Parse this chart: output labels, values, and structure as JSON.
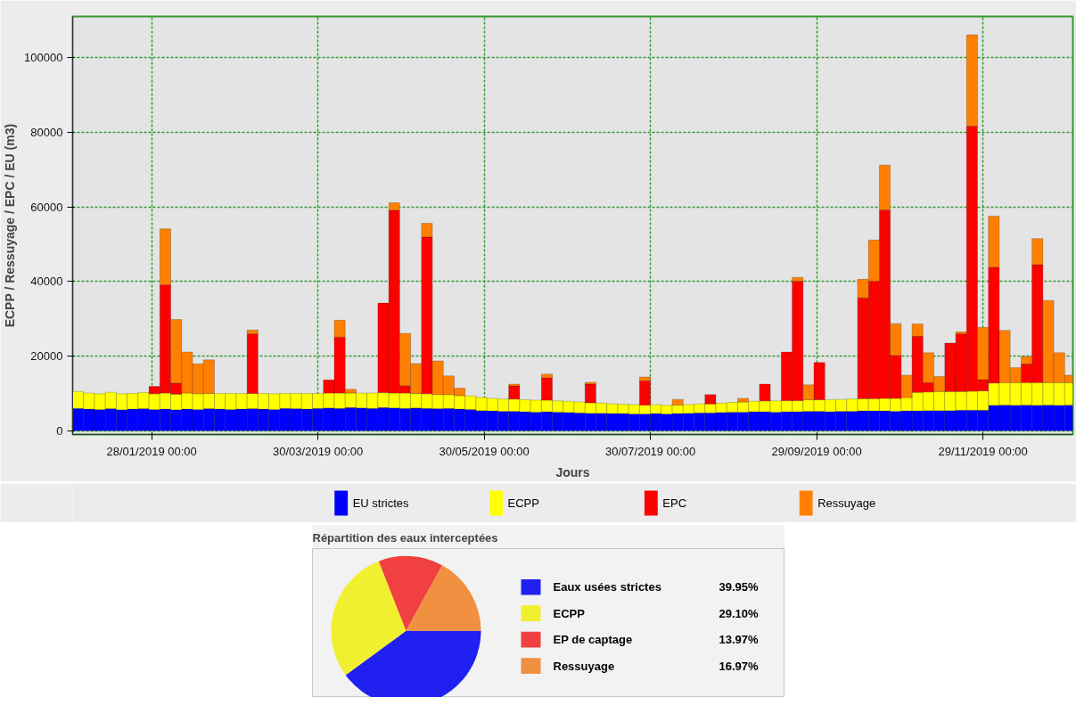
{
  "chart_data": [
    {
      "type": "bar",
      "stacked": true,
      "xlabel": "Jours",
      "ylabel": "ECPP / Ressuyage / EPC / EU (m3)",
      "x": [
        "2019-01-01",
        "2019-01-05",
        "2019-01-09",
        "2019-01-13",
        "2019-01-17",
        "2019-01-21",
        "2019-01-25",
        "2019-01-29",
        "2019-02-02",
        "2019-02-06",
        "2019-02-10",
        "2019-02-14",
        "2019-02-18",
        "2019-02-22",
        "2019-02-26",
        "2019-03-02",
        "2019-03-06",
        "2019-03-10",
        "2019-03-14",
        "2019-03-18",
        "2019-03-22",
        "2019-03-26",
        "2019-03-30",
        "2019-04-03",
        "2019-04-07",
        "2019-04-11",
        "2019-04-15",
        "2019-04-19",
        "2019-04-23",
        "2019-04-27",
        "2019-05-01",
        "2019-05-05",
        "2019-05-09",
        "2019-05-13",
        "2019-05-17",
        "2019-05-21",
        "2019-05-25",
        "2019-05-29",
        "2019-06-02",
        "2019-06-06",
        "2019-06-10",
        "2019-06-14",
        "2019-06-18",
        "2019-06-22",
        "2019-06-26",
        "2019-06-30",
        "2019-07-04",
        "2019-07-08",
        "2019-07-12",
        "2019-07-16",
        "2019-07-20",
        "2019-07-24",
        "2019-07-28",
        "2019-08-01",
        "2019-08-05",
        "2019-08-09",
        "2019-08-13",
        "2019-08-17",
        "2019-08-21",
        "2019-08-25",
        "2019-08-29",
        "2019-09-02",
        "2019-09-06",
        "2019-09-10",
        "2019-09-14",
        "2019-09-18",
        "2019-09-22",
        "2019-09-26",
        "2019-09-30",
        "2019-10-04",
        "2019-10-08",
        "2019-10-12",
        "2019-10-16",
        "2019-10-20",
        "2019-10-24",
        "2019-10-28",
        "2019-11-01",
        "2019-11-05",
        "2019-11-09",
        "2019-11-13",
        "2019-11-17",
        "2019-11-21",
        "2019-11-25",
        "2019-11-29",
        "2019-12-03",
        "2019-12-07",
        "2019-12-11",
        "2019-12-15",
        "2019-12-19",
        "2019-12-23",
        "2019-12-27",
        "2019-12-31"
      ],
      "series": [
        {
          "name": "EU strictes",
          "color": "#0000ff",
          "values": [
            6000,
            5800,
            5700,
            5900,
            5600,
            5800,
            5900,
            5700,
            5800,
            5600,
            5800,
            5700,
            5900,
            5800,
            5700,
            5800,
            5900,
            5800,
            5700,
            6000,
            5900,
            5800,
            6000,
            6100,
            6000,
            6200,
            6100,
            6000,
            6200,
            6100,
            6000,
            6100,
            6000,
            5900,
            6000,
            5800,
            5700,
            5400,
            5300,
            5200,
            5200,
            5100,
            5000,
            5100,
            5000,
            4900,
            4800,
            4700,
            4700,
            4600,
            4600,
            4500,
            4500,
            4600,
            4500,
            4600,
            4700,
            4800,
            4800,
            4900,
            5000,
            5000,
            5100,
            5100,
            5000,
            5100,
            5100,
            5200,
            5200,
            5100,
            5200,
            5200,
            5300,
            5300,
            5300,
            5200,
            5300,
            5300,
            5400,
            5400,
            5400,
            5500,
            5500,
            5500,
            6800,
            6900,
            6800,
            6900,
            6800,
            6900,
            6800,
            6900
          ]
        },
        {
          "name": "ECPP",
          "color": "#ffff00",
          "values": [
            4500,
            4300,
            4200,
            4400,
            4300,
            4200,
            4300,
            4200,
            4300,
            4200,
            4300,
            4200,
            4100,
            4200,
            4300,
            4200,
            4100,
            4200,
            4200,
            4000,
            4100,
            4200,
            4000,
            4000,
            4100,
            3900,
            4000,
            4100,
            4000,
            4000,
            4100,
            3900,
            3900,
            3800,
            3700,
            3600,
            3600,
            3500,
            3400,
            3300,
            3300,
            3200,
            3200,
            3100,
            3000,
            3000,
            2900,
            2800,
            2700,
            2600,
            2500,
            2500,
            2400,
            2400,
            2300,
            2300,
            2300,
            2400,
            2400,
            2500,
            2600,
            2700,
            2800,
            2900,
            3000,
            3000,
            3000,
            3100,
            3100,
            3200,
            3200,
            3300,
            3300,
            3300,
            3400,
            3500,
            3600,
            5000,
            5000,
            5100,
            5100,
            5000,
            5100,
            5200,
            6000,
            6000,
            6100,
            6000,
            6100,
            6000,
            6100,
            6000
          ]
        },
        {
          "name": "EPC",
          "color": "#ff0000",
          "values": [
            0,
            0,
            0,
            0,
            0,
            0,
            0,
            2000,
            29000,
            3000,
            0,
            0,
            0,
            0,
            0,
            0,
            16000,
            0,
            0,
            0,
            0,
            0,
            0,
            3500,
            15000,
            0,
            0,
            0,
            24000,
            49000,
            2000,
            0,
            42000,
            0,
            0,
            0,
            0,
            0,
            0,
            0,
            3500,
            0,
            0,
            6000,
            0,
            0,
            0,
            5000,
            0,
            0,
            0,
            0,
            6500,
            0,
            0,
            0,
            0,
            0,
            2500,
            0,
            0,
            0,
            0,
            4500,
            0,
            13000,
            32000,
            0,
            10000,
            0,
            0,
            0,
            27000,
            31500,
            50500,
            11500,
            0,
            15000,
            2500,
            0,
            13000,
            15500,
            71000,
            3000,
            31000,
            0,
            0,
            5000,
            31600,
            0,
            0,
            0
          ]
        },
        {
          "name": "Ressuyage",
          "color": "#ff8000",
          "values": [
            0,
            0,
            0,
            0,
            0,
            0,
            0,
            0,
            15000,
            17000,
            11000,
            8000,
            9000,
            0,
            0,
            0,
            1000,
            0,
            0,
            0,
            0,
            0,
            0,
            0,
            4500,
            1000,
            0,
            0,
            0,
            2000,
            14000,
            8000,
            3700,
            9000,
            5000,
            2000,
            0,
            0,
            0,
            0,
            500,
            0,
            0,
            1000,
            0,
            0,
            0,
            500,
            0,
            0,
            0,
            0,
            1000,
            0,
            0,
            1500,
            0,
            0,
            0,
            0,
            0,
            1000,
            0,
            0,
            0,
            0,
            1000,
            4000,
            0,
            0,
            0,
            0,
            5000,
            11000,
            12000,
            8500,
            6000,
            3300,
            8000,
            4000,
            0,
            500,
            24500,
            14000,
            13700,
            14000,
            4000,
            2000,
            7000,
            22000,
            8000,
            2000
          ]
        }
      ],
      "xlim": [
        "2018-12-30",
        "2020-01-01"
      ],
      "ylim": [
        -1000,
        111000
      ],
      "xticks": [
        {
          "value": "2019-01-28",
          "label": "28/01/2019 00:00"
        },
        {
          "value": "2019-03-30",
          "label": "30/03/2019 00:00"
        },
        {
          "value": "2019-05-30",
          "label": "30/05/2019 00:00"
        },
        {
          "value": "2019-07-30",
          "label": "30/07/2019 00:00"
        },
        {
          "value": "2019-09-29",
          "label": "29/09/2019 00:00"
        },
        {
          "value": "2019-11-29",
          "label": "29/11/2019 00:00"
        }
      ],
      "yticks": [
        0,
        20000,
        40000,
        60000,
        80000,
        100000
      ],
      "grid": true,
      "legend": "bottom"
    },
    {
      "type": "pie",
      "title": "Répartition des eaux interceptées",
      "categories": [
        "Eaux usées strictes",
        "ECPP",
        "EP de captage",
        "Ressuyage"
      ],
      "values": [
        39.95,
        29.1,
        13.97,
        16.97
      ],
      "colors": [
        "#2020f0",
        "#f0f030",
        "#f04040",
        "#f09040"
      ],
      "value_labels": [
        "39.95%",
        "29.10%",
        "13.97%",
        "16.97%"
      ],
      "legend": "right"
    }
  ]
}
